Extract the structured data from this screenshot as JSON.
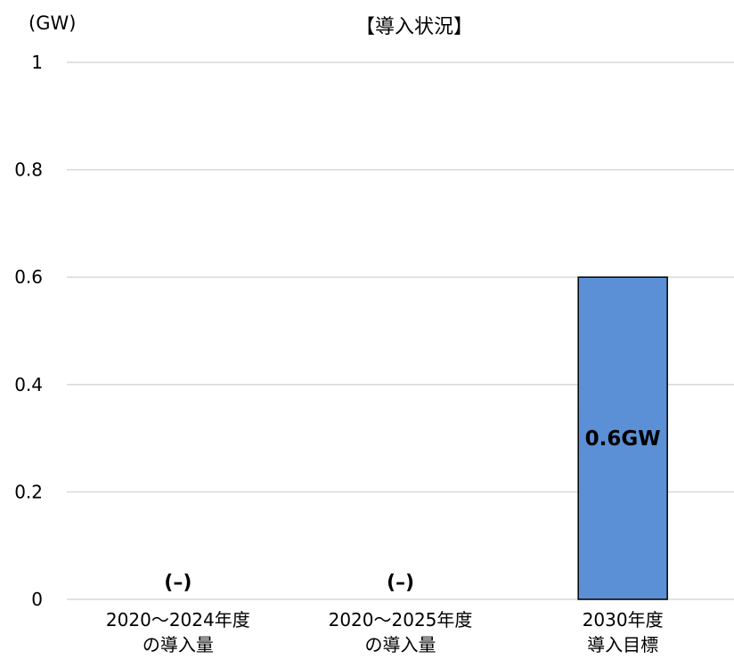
{
  "chart_data": {
    "type": "bar",
    "title": "【導入状況】",
    "ylabel": "(GW)",
    "xlabel": "",
    "ylim": [
      0,
      1
    ],
    "yticks": [
      "0",
      "0.2",
      "0.4",
      "0.6",
      "0.8",
      "1"
    ],
    "ytick_values": [
      0,
      0.2,
      0.4,
      0.6,
      0.8,
      1
    ],
    "grid": true,
    "categories": [
      [
        "2020～2024年度",
        "の導入量"
      ],
      [
        "2020～2025年度",
        "の導入量"
      ],
      [
        "2030年度",
        "導入目標"
      ]
    ],
    "values": [
      null,
      null,
      0.6
    ],
    "data_labels": [
      "(–)",
      "(–)",
      "0.6GW"
    ],
    "bar_color": "#5b8fd6",
    "bar_edge_color": "#000000",
    "grid_color": "#d9d9d9"
  }
}
